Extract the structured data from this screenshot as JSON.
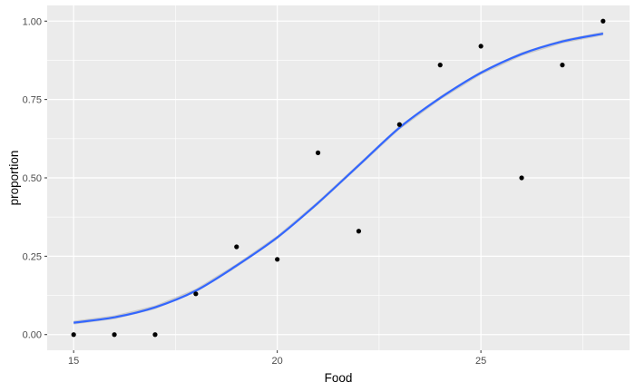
{
  "chart_data": {
    "type": "scatter",
    "title": "",
    "xlabel": "Food",
    "ylabel": "proportion",
    "xlim": [
      14.35,
      28.65
    ],
    "ylim": [
      -0.05,
      1.05
    ],
    "x_ticks": [
      15,
      20,
      25
    ],
    "x_tick_labels": [
      "15",
      "20",
      "25"
    ],
    "x_minor_ticks": [
      17.5,
      22.5,
      27.5
    ],
    "y_ticks": [
      0,
      0.25,
      0.5,
      0.75,
      1.0
    ],
    "y_tick_labels": [
      "0.00",
      "0.25",
      "0.50",
      "0.75",
      "1.00"
    ],
    "y_minor_ticks": [
      0.125,
      0.375,
      0.625,
      0.875
    ],
    "grid": true,
    "colors": {
      "panel_background": "#ebebeb",
      "grid": "#ffffff",
      "points": "#000000",
      "fit_line": "#3366ff",
      "fit_ribbon": "#999999"
    },
    "points": {
      "x": [
        15,
        16,
        17,
        18,
        19,
        20,
        21,
        22,
        23,
        24,
        25,
        26,
        27,
        28
      ],
      "y": [
        0.0,
        0.0,
        0.0,
        0.13,
        0.28,
        0.24,
        0.58,
        0.33,
        0.67,
        0.86,
        0.92,
        0.5,
        0.86,
        1.0
      ]
    },
    "fit": {
      "method": "logistic",
      "x": [
        15,
        16,
        17,
        18,
        19,
        20,
        21,
        22,
        23,
        24,
        25,
        26,
        27,
        28
      ],
      "y": [
        0.038,
        0.055,
        0.087,
        0.14,
        0.22,
        0.31,
        0.42,
        0.54,
        0.66,
        0.755,
        0.835,
        0.895,
        0.935,
        0.96
      ]
    }
  }
}
